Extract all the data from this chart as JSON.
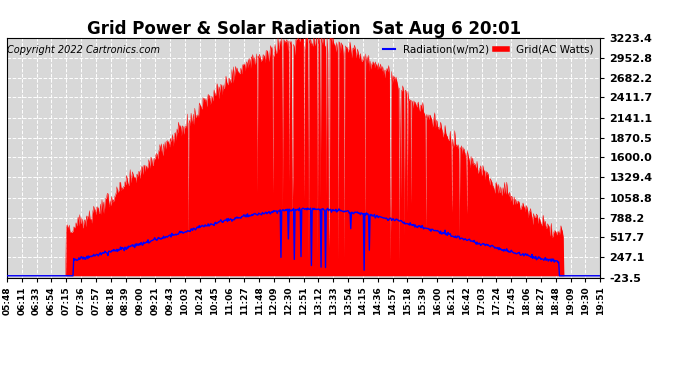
{
  "title": "Grid Power & Solar Radiation  Sat Aug 6 20:01",
  "copyright": "Copyright 2022 Cartronics.com",
  "legend_radiation": "Radiation(w/m2)",
  "legend_grid": "Grid(AC Watts)",
  "y_ticks": [
    -23.5,
    247.1,
    517.7,
    788.2,
    1058.8,
    1329.4,
    1600.0,
    1870.5,
    2141.1,
    2411.7,
    2682.2,
    2952.8,
    3223.4
  ],
  "y_min": -23.5,
  "y_max": 3223.4,
  "bg_color": "#ffffff",
  "plot_bg_color": "#d8d8d8",
  "grid_color": "#ffffff",
  "radiation_fill_color": "#ff0000",
  "radiation_line_color": "#0000ff",
  "title_fontsize": 12,
  "copyright_fontsize": 7,
  "tick_fontsize": 8,
  "x_label_fontsize": 6.5,
  "x_labels": [
    "05:48",
    "06:11",
    "06:33",
    "06:54",
    "07:15",
    "07:36",
    "07:57",
    "08:18",
    "08:39",
    "09:00",
    "09:21",
    "09:43",
    "10:03",
    "10:24",
    "10:45",
    "11:06",
    "11:27",
    "11:48",
    "12:09",
    "12:30",
    "12:51",
    "13:12",
    "13:33",
    "13:54",
    "14:15",
    "14:36",
    "14:57",
    "15:18",
    "15:39",
    "16:00",
    "16:21",
    "16:42",
    "17:03",
    "17:24",
    "17:45",
    "18:06",
    "18:27",
    "18:48",
    "19:09",
    "19:30",
    "19:51"
  ],
  "radiation_peak": 900,
  "grid_peak": 3200,
  "peak_index": 20.5,
  "sigma": 9.0,
  "n_points": 800,
  "seed": 77
}
